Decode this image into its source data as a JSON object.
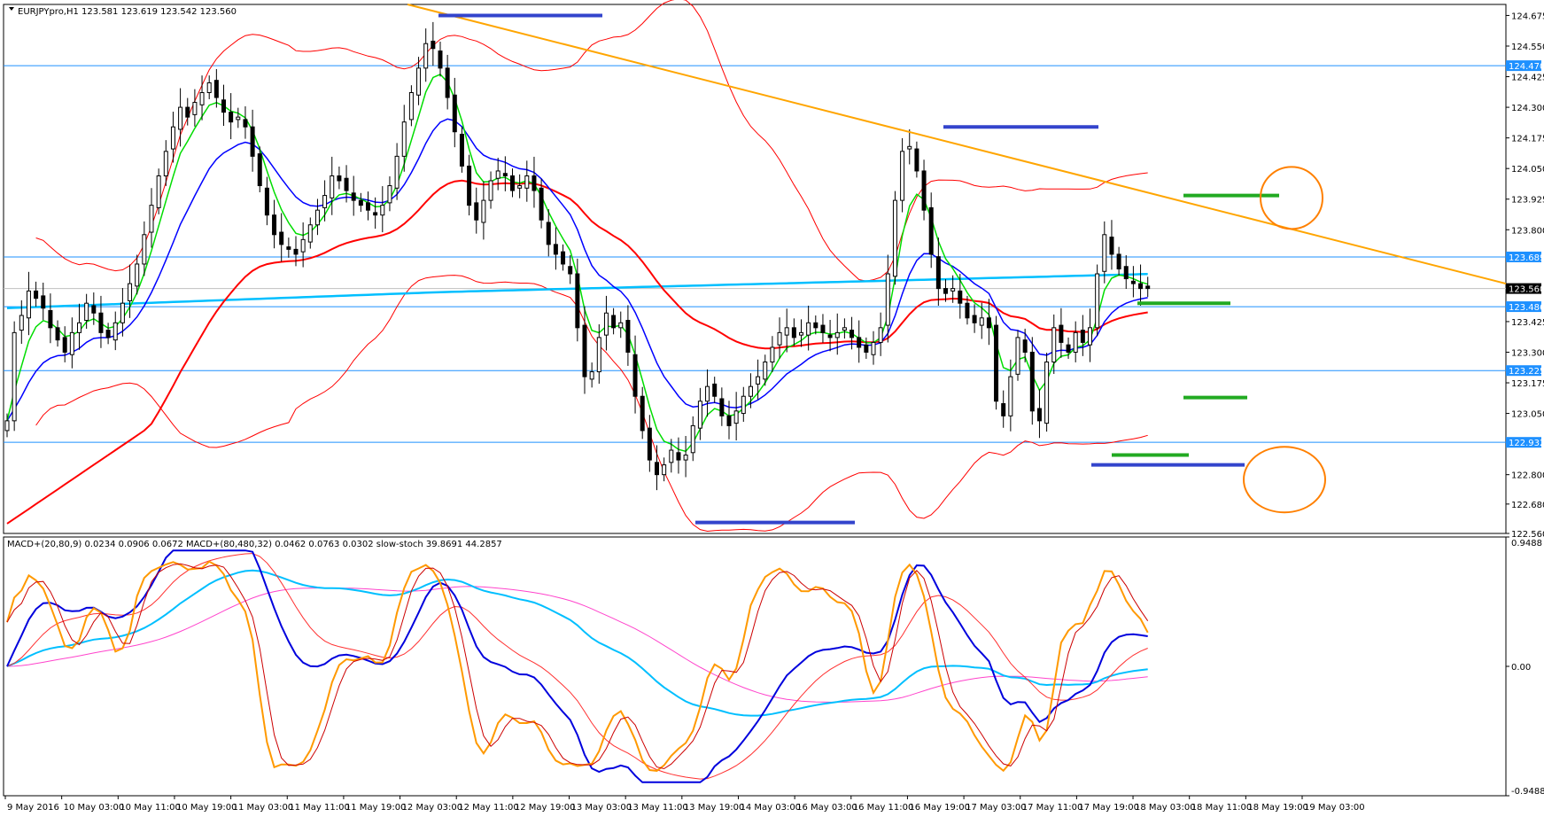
{
  "colors": {
    "bull_candle": "#ffffff",
    "bear_candle": "#000000",
    "ema_fast": "#00dd00",
    "ema_mid": "#0000ff",
    "ema_slow": "#ff0000",
    "ema_long": "#00bfff",
    "bollinger": "#ff0000",
    "trendline": "#ffa500",
    "support_marks": "#3344cc",
    "target_marks": "#22aa22",
    "circle": "#ff8000",
    "hline": "#1e90ff",
    "macd_fast": "#0000dd",
    "macd_fast_signal": "#ff3030",
    "macd_slow": "#00bfff",
    "macd_slow_signal": "#ff44cc",
    "stoch_main": "#ff9900",
    "stoch_signal": "#cc0000"
  },
  "chart_data": [
    {
      "type": "candlestick",
      "title": "EURJPYpro,H1  123.581 123.619 123.542 123.560",
      "symbol": "EURJPYpro",
      "timeframe": "H1",
      "ohlc_header": {
        "open": 123.581,
        "high": 123.619,
        "low": 123.542,
        "close": 123.56
      },
      "ylim": [
        122.56,
        124.72
      ],
      "y_ticks": [
        124.675,
        124.55,
        124.425,
        124.3,
        124.175,
        124.05,
        123.925,
        123.8,
        123.425,
        123.3,
        123.175,
        123.05,
        122.8,
        122.68,
        122.56
      ],
      "price_levels": [
        {
          "label": "124.470",
          "value": 124.47
        },
        {
          "label": "123.689",
          "value": 123.689
        },
        {
          "label": "123.486",
          "value": 123.486
        },
        {
          "label": "123.225",
          "value": 123.225
        },
        {
          "label": "122.932",
          "value": 122.932
        }
      ],
      "current_price": {
        "label": "123.560",
        "value": 123.56
      },
      "x_labels": [
        "9 May 2016",
        "10 May 03:00",
        "10 May 11:00",
        "10 May 19:00",
        "11 May 03:00",
        "11 May 11:00",
        "11 May 19:00",
        "12 May 03:00",
        "12 May 11:00",
        "12 May 19:00",
        "13 May 03:00",
        "13 May 11:00",
        "13 May 19:00",
        "14 May 03:00",
        "16 May 03:00",
        "16 May 11:00",
        "16 May 19:00",
        "17 May 03:00",
        "17 May 11:00",
        "17 May 19:00",
        "18 May 03:00",
        "18 May 11:00",
        "18 May 19:00",
        "19 May 03:00"
      ],
      "closes": [
        123.02,
        123.38,
        123.45,
        123.55,
        123.52,
        123.48,
        123.4,
        123.35,
        123.3,
        123.38,
        123.42,
        123.5,
        123.46,
        123.38,
        123.36,
        123.42,
        123.5,
        123.58,
        123.66,
        123.78,
        123.9,
        124.02,
        124.12,
        124.22,
        124.3,
        124.26,
        124.32,
        124.36,
        124.4,
        124.34,
        124.28,
        124.24,
        124.26,
        124.22,
        124.1,
        123.98,
        123.86,
        123.78,
        123.74,
        123.72,
        123.7,
        123.76,
        123.82,
        123.88,
        123.94,
        124.02,
        124.0,
        123.96,
        123.92,
        123.9,
        123.88,
        123.86,
        123.9,
        123.98,
        124.1,
        124.24,
        124.36,
        124.46,
        124.56,
        124.54,
        124.46,
        124.34,
        124.2,
        124.06,
        123.9,
        123.84,
        123.92,
        124.0,
        124.04,
        124.02,
        123.96,
        123.98,
        124.02,
        123.96,
        123.84,
        123.74,
        123.7,
        123.66,
        123.62,
        123.4,
        123.2,
        123.22,
        123.36,
        123.46,
        123.4,
        123.42,
        123.3,
        123.12,
        122.98,
        122.86,
        122.8,
        122.84,
        122.9,
        122.86,
        122.88,
        123.0,
        123.1,
        123.16,
        123.12,
        123.04,
        123.0,
        123.06,
        123.12,
        123.16,
        123.2,
        123.26,
        123.32,
        123.38,
        123.4,
        123.36,
        123.38,
        123.42,
        123.4,
        123.38,
        123.36,
        123.38,
        123.4,
        123.36,
        123.32,
        123.3,
        123.34,
        123.4,
        123.62,
        123.92,
        124.12,
        124.14,
        124.04,
        123.88,
        123.7,
        123.56,
        123.54,
        123.56,
        123.5,
        123.44,
        123.42,
        123.44,
        123.4,
        123.1,
        123.04,
        123.2,
        123.36,
        123.3,
        123.06,
        123.02,
        123.26,
        123.4,
        123.34,
        123.3,
        123.38,
        123.34,
        123.4,
        123.62,
        123.78,
        123.7,
        123.64,
        123.6,
        123.58,
        123.56,
        123.56
      ],
      "series": [
        {
          "name": "",
          "style": "green"
        },
        {
          "name": "",
          "style": "blue"
        },
        {
          "name": "",
          "style": "red"
        },
        {
          "name": "",
          "style": "lightblue"
        }
      ]
    },
    {
      "type": "line",
      "title": "MACD+(20,80,9) 0.0234 0.0906 0.0672   MACD+(80,480,32) 0.0462 0.0763 0.0302   slow-stoch 39.8691 44.2857",
      "ylim": [
        -0.9488,
        0.9488
      ],
      "y_ticks": [
        {
          "label": "0.9488",
          "value": 0.9488
        },
        {
          "label": "0.00",
          "value": 0.0
        },
        {
          "label": "-0.9488",
          "value": -0.9488
        }
      ]
    }
  ]
}
